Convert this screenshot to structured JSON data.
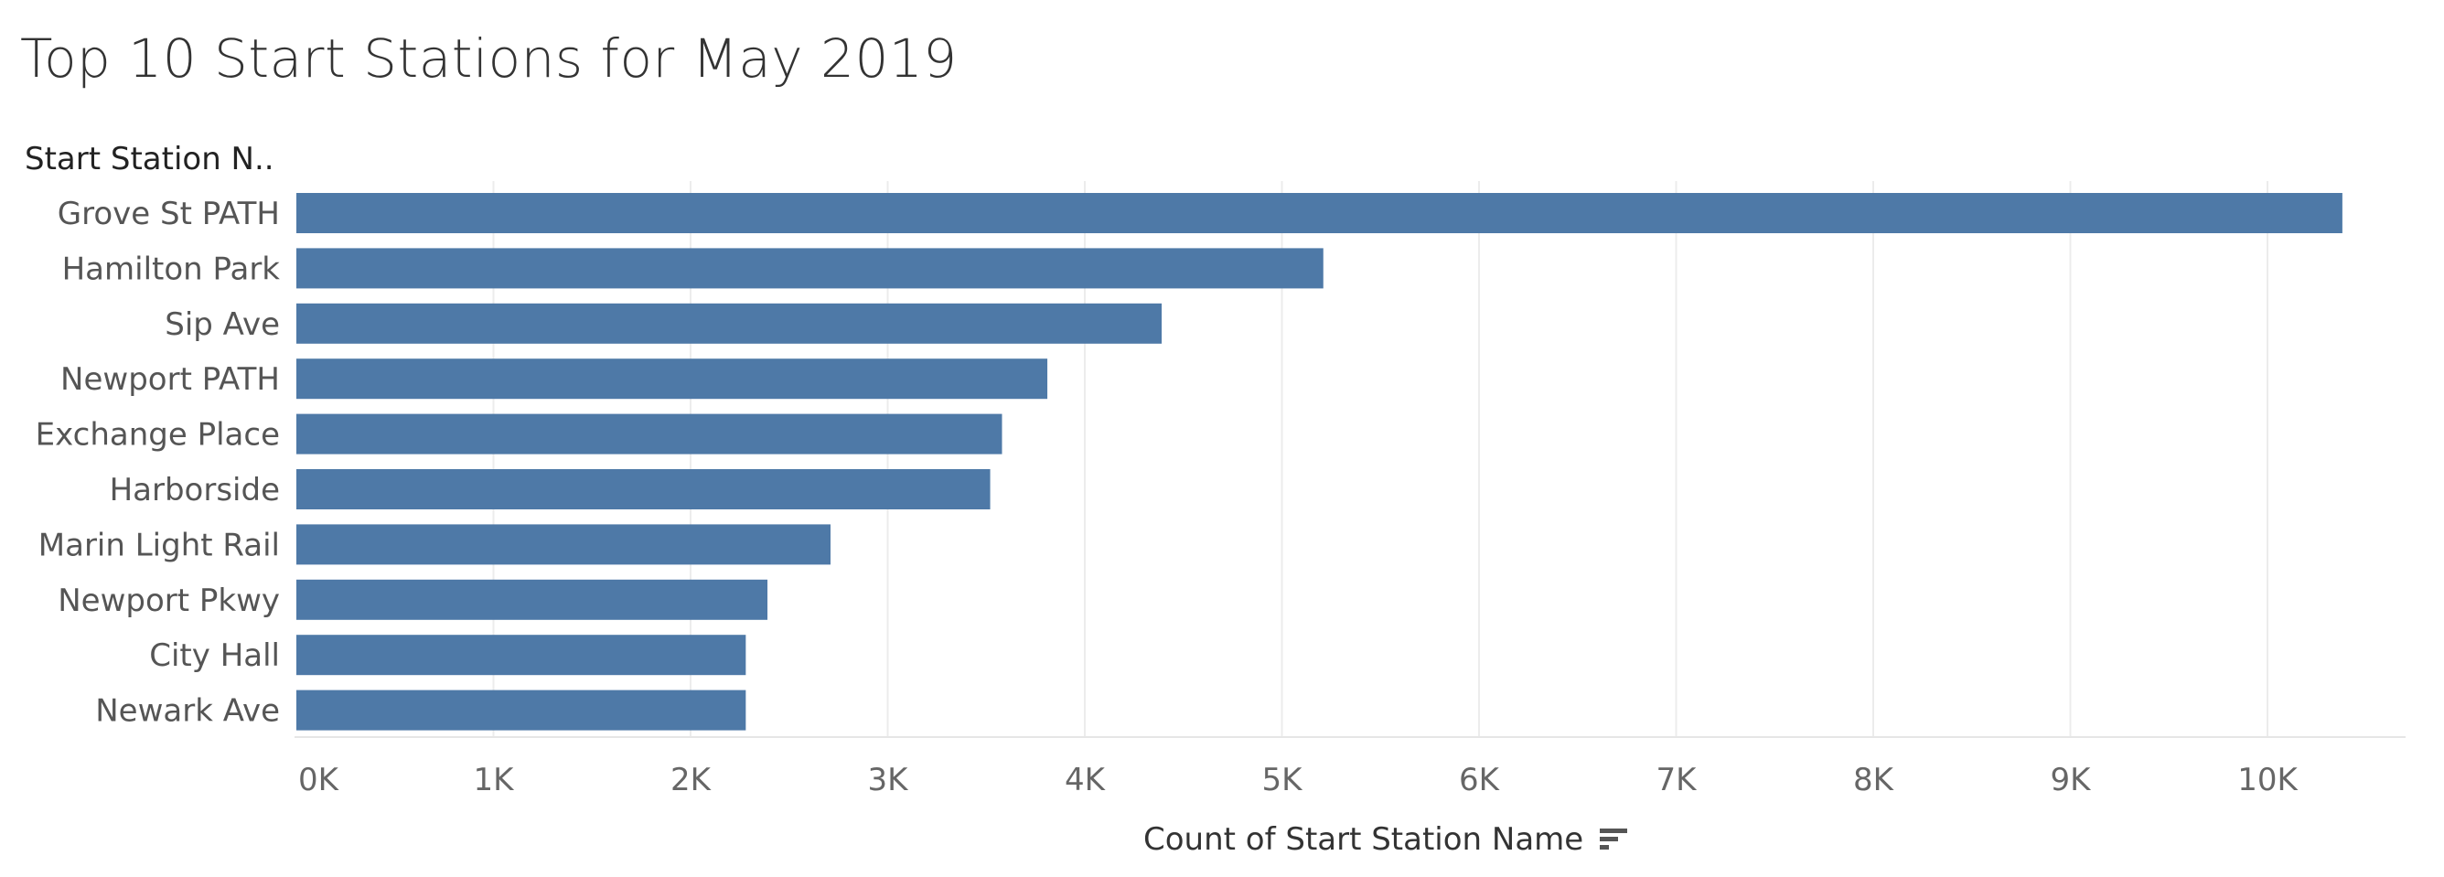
{
  "chart_data": {
    "type": "bar",
    "orientation": "horizontal",
    "title": "Top 10 Start Stations for May 2019",
    "row_header": "Start Station N..",
    "xlabel": "Count of Start Station Name",
    "categories": [
      "Grove St PATH",
      "Hamilton Park",
      "Sip Ave",
      "Newport PATH",
      "Exchange Place",
      "Harborside",
      "Marin Light Rail",
      "Newport Pkwy",
      "City Hall",
      "Newark Ave"
    ],
    "values": [
      10380,
      5210,
      4390,
      3810,
      3580,
      3520,
      2710,
      2390,
      2280,
      2280
    ],
    "xlim": [
      0,
      11000
    ],
    "x_ticks": [
      0,
      1000,
      2000,
      3000,
      4000,
      5000,
      6000,
      7000,
      8000,
      9000,
      10000
    ],
    "x_tick_labels": [
      "0K",
      "1K",
      "2K",
      "3K",
      "4K",
      "5K",
      "6K",
      "7K",
      "8K",
      "9K",
      "10K"
    ],
    "bar_color": "#4e79a7",
    "grid": true,
    "legend": "none"
  },
  "icons": {
    "sort": "sort-descending-icon"
  }
}
